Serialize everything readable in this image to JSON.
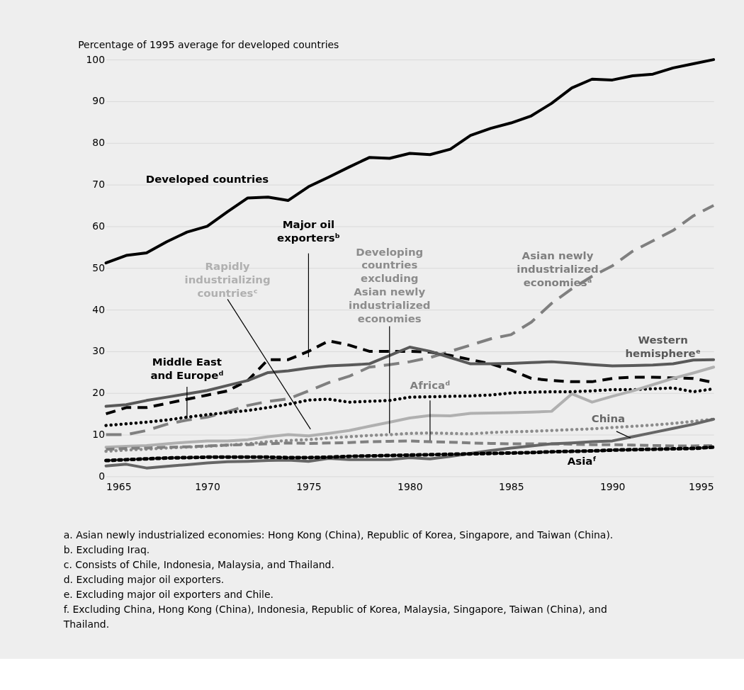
{
  "chart_data": {
    "type": "line",
    "ylabel": "Percentage of 1995 average for developed countries",
    "x": [
      1965,
      1966,
      1967,
      1968,
      1969,
      1970,
      1971,
      1972,
      1973,
      1974,
      1975,
      1976,
      1977,
      1978,
      1979,
      1980,
      1981,
      1982,
      1983,
      1984,
      1985,
      1986,
      1987,
      1988,
      1989,
      1990,
      1991,
      1992,
      1993,
      1994,
      1995
    ],
    "xlim": [
      1965,
      1995
    ],
    "xticks": [
      1965,
      1970,
      1975,
      1980,
      1985,
      1990,
      1995
    ],
    "ylim": [
      0,
      100
    ],
    "yticks": [
      0,
      10,
      20,
      30,
      40,
      50,
      60,
      70,
      80,
      90,
      100
    ],
    "grid": "y",
    "series": [
      {
        "name": "Developed countries",
        "color": "#000000",
        "line_style": "solid",
        "values": [
          51.2,
          53.0,
          53.6,
          56.3,
          58.6,
          60.0,
          63.5,
          66.8,
          67.0,
          66.2,
          69.5,
          71.8,
          74.2,
          76.5,
          76.3,
          77.5,
          77.2,
          78.5,
          81.8,
          83.5,
          84.8,
          86.5,
          89.5,
          93.2,
          95.3,
          95.1,
          96.1,
          96.5,
          98.0,
          99.0,
          100
        ]
      },
      {
        "name": "Asian newly industrialized economiesᵃ",
        "color": "#7f7f7f",
        "line_style": "dashed",
        "values": [
          10,
          10,
          11,
          12.5,
          13.5,
          14.2,
          15.5,
          17,
          18,
          18.6,
          20.5,
          22.5,
          24,
          26.2,
          26.8,
          27.5,
          28.5,
          30,
          31.5,
          33,
          34,
          37,
          41.5,
          45,
          48,
          50.5,
          54,
          56.5,
          59,
          62.5,
          65
        ]
      },
      {
        "name": "Major oil exportersᵇ",
        "color": "#000000",
        "line_style": "dashed",
        "values": [
          15,
          16.5,
          16.5,
          17.5,
          18.5,
          19.5,
          20.5,
          23,
          28,
          28,
          30,
          32.5,
          31.5,
          30,
          30,
          30,
          29.8,
          29,
          28,
          27,
          25.5,
          23.5,
          23,
          22.7,
          22.7,
          23.5,
          23.8,
          23.8,
          23.6,
          23.5,
          22.5
        ]
      },
      {
        "name": "Western hemisphereᵉ",
        "color": "#595959",
        "line_style": "solid",
        "values": [
          16.8,
          17.2,
          18.2,
          19,
          19.8,
          20.6,
          21.8,
          23,
          24.9,
          25.3,
          26,
          26.5,
          26.7,
          27,
          29,
          31,
          30,
          28.5,
          27,
          27,
          27.1,
          27.3,
          27.5,
          27.2,
          26.8,
          26.5,
          26.6,
          26.7,
          27,
          27.9,
          28
        ]
      },
      {
        "name": "Middle East and Europeᵈ",
        "color": "#000000",
        "line_style": "dotted",
        "values": [
          12.2,
          12.6,
          13,
          13.5,
          14.2,
          14.8,
          15.3,
          15.8,
          16.5,
          17.3,
          18.3,
          18.5,
          17.8,
          18,
          18.2,
          19,
          19.1,
          19.2,
          19.3,
          19.5,
          20,
          20.2,
          20.3,
          20.3,
          20.5,
          20.8,
          20.8,
          21,
          21.2,
          20.3,
          21
        ]
      },
      {
        "name": "Rapidly industrializing countriesᶜ",
        "color": "#b0b0b0",
        "line_style": "solid",
        "values": [
          7,
          7.2,
          7.4,
          7.8,
          8.2,
          8.5,
          8.5,
          8.8,
          9.5,
          10,
          9.7,
          10.3,
          11,
          12,
          13,
          14,
          14.6,
          14.5,
          15.1,
          15.2,
          15.3,
          15.4,
          15.6,
          19.8,
          17.8,
          19.2,
          20.5,
          22,
          23.5,
          24.8,
          26.2
        ]
      },
      {
        "name": "Developing countries excluding Asian newly industrialized economies",
        "color": "#8c8c8c",
        "line_style": "dotted",
        "values": [
          6,
          6.3,
          6.5,
          6.8,
          7,
          7.2,
          7.5,
          7.8,
          8.3,
          8.6,
          8.8,
          9.2,
          9.5,
          9.8,
          10,
          10.3,
          10.4,
          10.3,
          10.2,
          10.5,
          10.7,
          10.8,
          11,
          11.2,
          11.4,
          11.7,
          12,
          12.3,
          12.7,
          13.2,
          13.7
        ]
      },
      {
        "name": "Africaᵈ",
        "color": "#808080",
        "line_style": "dashed",
        "values": [
          6.5,
          6.7,
          6.8,
          7,
          7.1,
          7.3,
          7.5,
          7.6,
          7.8,
          8,
          7.9,
          8,
          8.1,
          8.3,
          8.4,
          8.5,
          8.3,
          8.2,
          8.0,
          7.9,
          7.8,
          7.8,
          7.8,
          7.7,
          7.6,
          7.6,
          7.5,
          7.4,
          7.3,
          7.3,
          7.4
        ]
      },
      {
        "name": "China",
        "color": "#666666",
        "line_style": "solid",
        "values": [
          2.5,
          2.9,
          2,
          2.4,
          2.8,
          3.2,
          3.5,
          3.6,
          3.8,
          3.9,
          3.6,
          4.3,
          4,
          4,
          4,
          4.5,
          4.2,
          4.8,
          5.5,
          6.2,
          6.8,
          7.3,
          7.8,
          8.0,
          8.3,
          8.5,
          9.5,
          10.5,
          11.5,
          12.5,
          13.7
        ]
      },
      {
        "name": "Asiaᶠ",
        "color": "#000000",
        "line_style": "dotted",
        "values": [
          3.8,
          4,
          4.2,
          4.4,
          4.5,
          4.6,
          4.6,
          4.6,
          4.6,
          4.5,
          4.5,
          4.6,
          4.8,
          4.9,
          5,
          5.1,
          5.2,
          5.3,
          5.4,
          5.5,
          5.6,
          5.7,
          5.9,
          6,
          6.1,
          6.3,
          6.4,
          6.5,
          6.6,
          6.7,
          7
        ]
      }
    ],
    "annotations": [
      "a. Asian newly industrialized economies: Hong Kong (China), Republic of Korea, Singapore, and Taiwan (China).",
      "b. Excluding Iraq.",
      "c. Consists of Chile, Indonesia, Malaysia, and Thailand.",
      "d. Excluding major oil exporters.",
      "e. Excluding major oil exporters and Chile.",
      "f. Excluding China, Hong Kong (China), Indonesia, Republic of Korea, Malaysia, Singapore, Taiwan (China), and Thailand."
    ]
  }
}
